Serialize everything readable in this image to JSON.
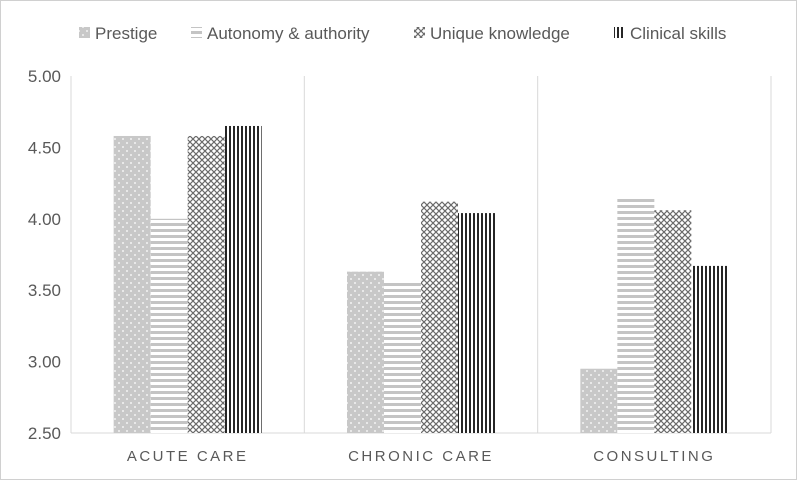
{
  "chart_data": {
    "type": "bar",
    "categories": [
      "ACUTE CARE",
      "CHRONIC CARE",
      "CONSULTING"
    ],
    "series": [
      {
        "name": "Prestige",
        "values": [
          4.58,
          3.63,
          2.95
        ],
        "pattern": "dots",
        "color": "#bfbfbf"
      },
      {
        "name": "Autonomy & authority",
        "values": [
          4.0,
          3.56,
          4.15
        ],
        "pattern": "hstripes",
        "color": "#bfbfbf"
      },
      {
        "name": "Unique knowledge",
        "values": [
          4.58,
          4.12,
          4.06
        ],
        "pattern": "crosshatch",
        "color": "#595959"
      },
      {
        "name": "Clinical skills",
        "values": [
          4.65,
          4.04,
          3.67
        ],
        "pattern": "vstripes",
        "color": "#262626"
      }
    ],
    "yticks": [
      "2.50",
      "3.00",
      "3.50",
      "4.00",
      "4.50",
      "5.00"
    ],
    "ylim": [
      2.5,
      5.0
    ],
    "legend_position": "top",
    "grid": false,
    "category_separators": true
  }
}
